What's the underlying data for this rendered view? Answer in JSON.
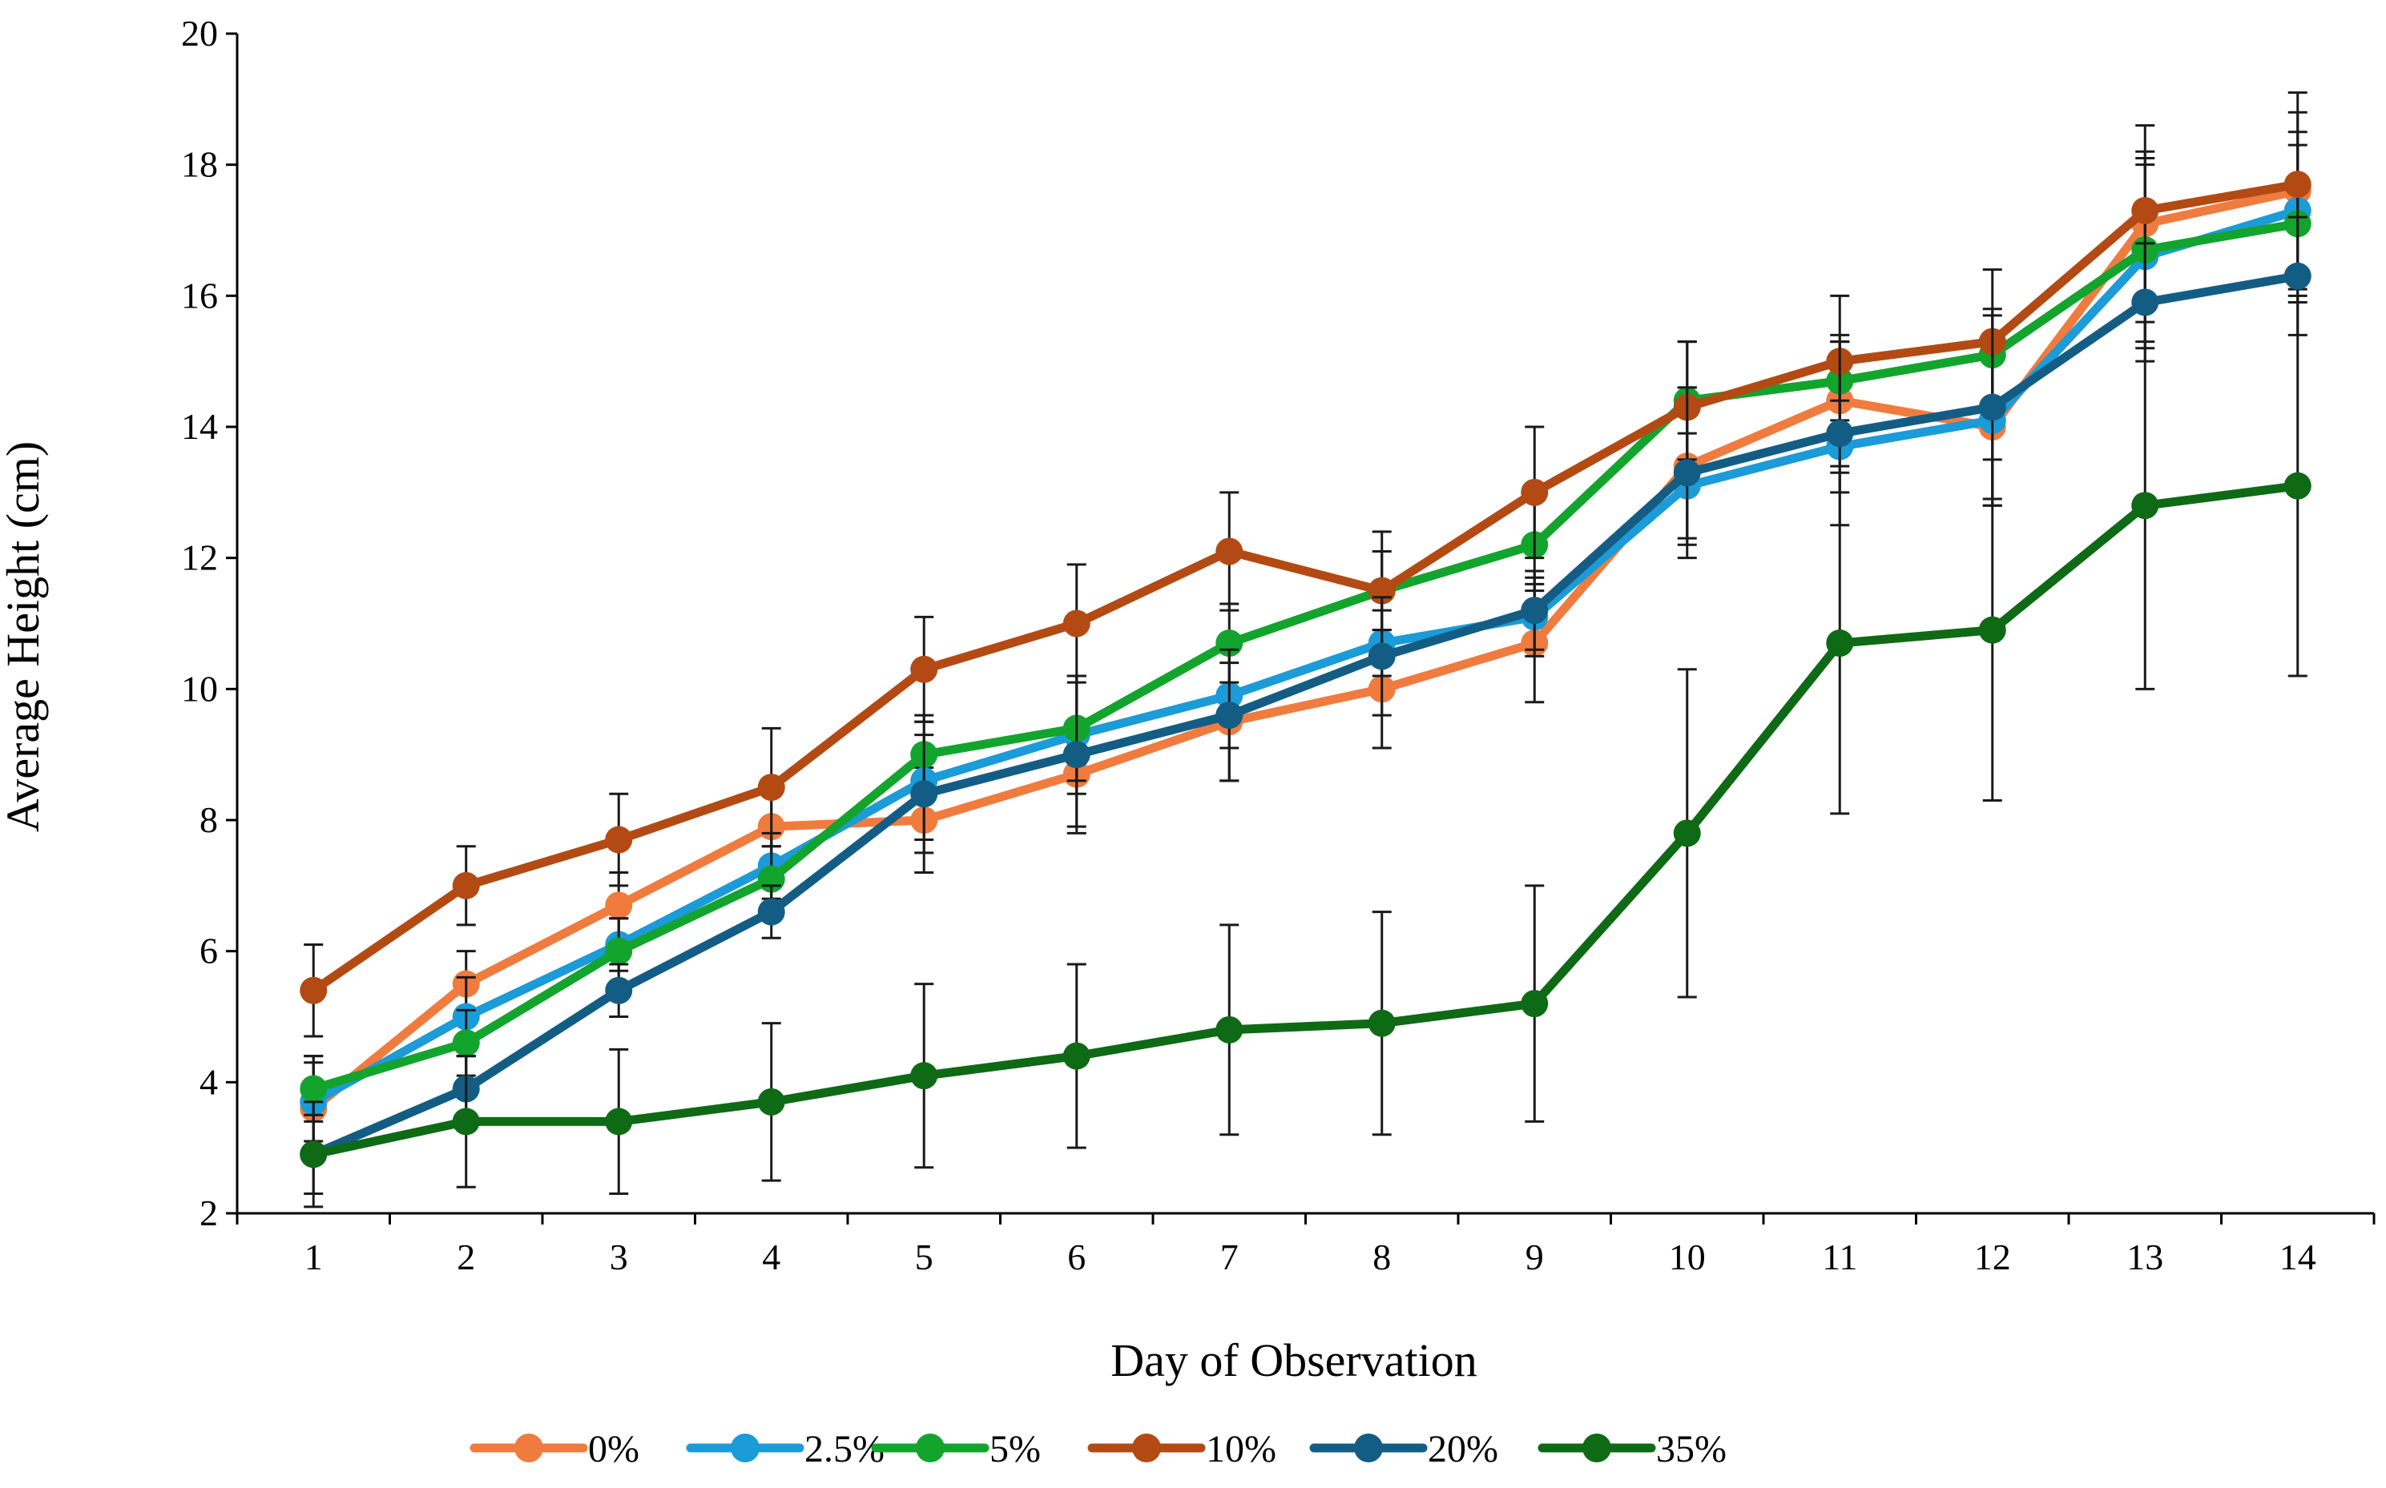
{
  "chart_data": {
    "type": "line",
    "title": "",
    "xlabel": "Day of Observation",
    "ylabel": "Average Height (cm)",
    "x": [
      1,
      2,
      3,
      4,
      5,
      6,
      7,
      8,
      9,
      10,
      11,
      12,
      13,
      14
    ],
    "xlim": [
      0.5,
      14.5
    ],
    "ylim": [
      2,
      20
    ],
    "yticks": [
      2,
      4,
      6,
      8,
      10,
      12,
      14,
      16,
      18,
      20
    ],
    "grid": false,
    "legend_position": "bottom",
    "series": [
      {
        "name": "0%",
        "color": "#F07B3F",
        "values": [
          3.6,
          5.5,
          6.7,
          7.9,
          8.0,
          8.7,
          9.5,
          10.0,
          10.7,
          13.4,
          14.4,
          14.0,
          17.1,
          17.6
        ],
        "errors": [
          0.8,
          0.5,
          0.5,
          0.5,
          0.8,
          0.8,
          0.9,
          0.9,
          0.9,
          1.2,
          1.0,
          1.2,
          1.1,
          1.2
        ]
      },
      {
        "name": "2.5%",
        "color": "#1B9BD7",
        "values": [
          3.7,
          5.0,
          6.1,
          7.3,
          8.6,
          9.3,
          9.9,
          10.7,
          11.1,
          13.1,
          13.7,
          14.1,
          16.6,
          17.3
        ],
        "errors": [
          0.6,
          0.6,
          0.4,
          0.5,
          0.9,
          0.9,
          0.8,
          0.5,
          0.6,
          0.8,
          0.7,
          1.3,
          1.4,
          1.2
        ]
      },
      {
        "name": "5%",
        "color": "#13A42D",
        "values": [
          3.9,
          4.6,
          6.0,
          7.1,
          9.0,
          9.4,
          10.7,
          11.5,
          12.2,
          14.4,
          14.7,
          15.1,
          16.7,
          17.1
        ],
        "errors": [
          0.5,
          0.5,
          0.5,
          0.5,
          0.6,
          0.8,
          0.6,
          0.6,
          0.7,
          0.9,
          0.6,
          0.7,
          1.4,
          1.2
        ]
      },
      {
        "name": "10%",
        "color": "#B34A14",
        "values": [
          5.4,
          7.0,
          7.7,
          8.5,
          10.3,
          11.0,
          12.1,
          11.5,
          13.0,
          14.3,
          15.0,
          15.3,
          17.3,
          17.7
        ],
        "errors": [
          0.7,
          0.6,
          0.7,
          0.9,
          0.8,
          0.9,
          0.9,
          0.9,
          1.0,
          1.0,
          1.0,
          1.1,
          1.3,
          1.4
        ]
      },
      {
        "name": "20%",
        "color": "#135D85",
        "values": [
          2.9,
          3.9,
          5.4,
          6.6,
          8.4,
          9.0,
          9.6,
          10.5,
          11.2,
          13.3,
          13.9,
          14.3,
          15.9,
          16.3
        ],
        "errors": [
          0.6,
          0.5,
          0.4,
          0.4,
          0.9,
          1.2,
          1.0,
          0.9,
          0.6,
          1.3,
          1.4,
          1.4,
          0.9,
          0.9
        ]
      },
      {
        "name": "35%",
        "color": "#0E6A15",
        "values": [
          2.9,
          3.4,
          3.4,
          3.7,
          4.1,
          4.4,
          4.8,
          4.9,
          5.2,
          7.8,
          10.7,
          10.9,
          12.8,
          13.1
        ],
        "errors": [
          0.8,
          1.0,
          1.1,
          1.2,
          1.4,
          1.4,
          1.6,
          1.7,
          1.8,
          2.5,
          2.6,
          2.6,
          2.8,
          2.9
        ]
      }
    ]
  }
}
